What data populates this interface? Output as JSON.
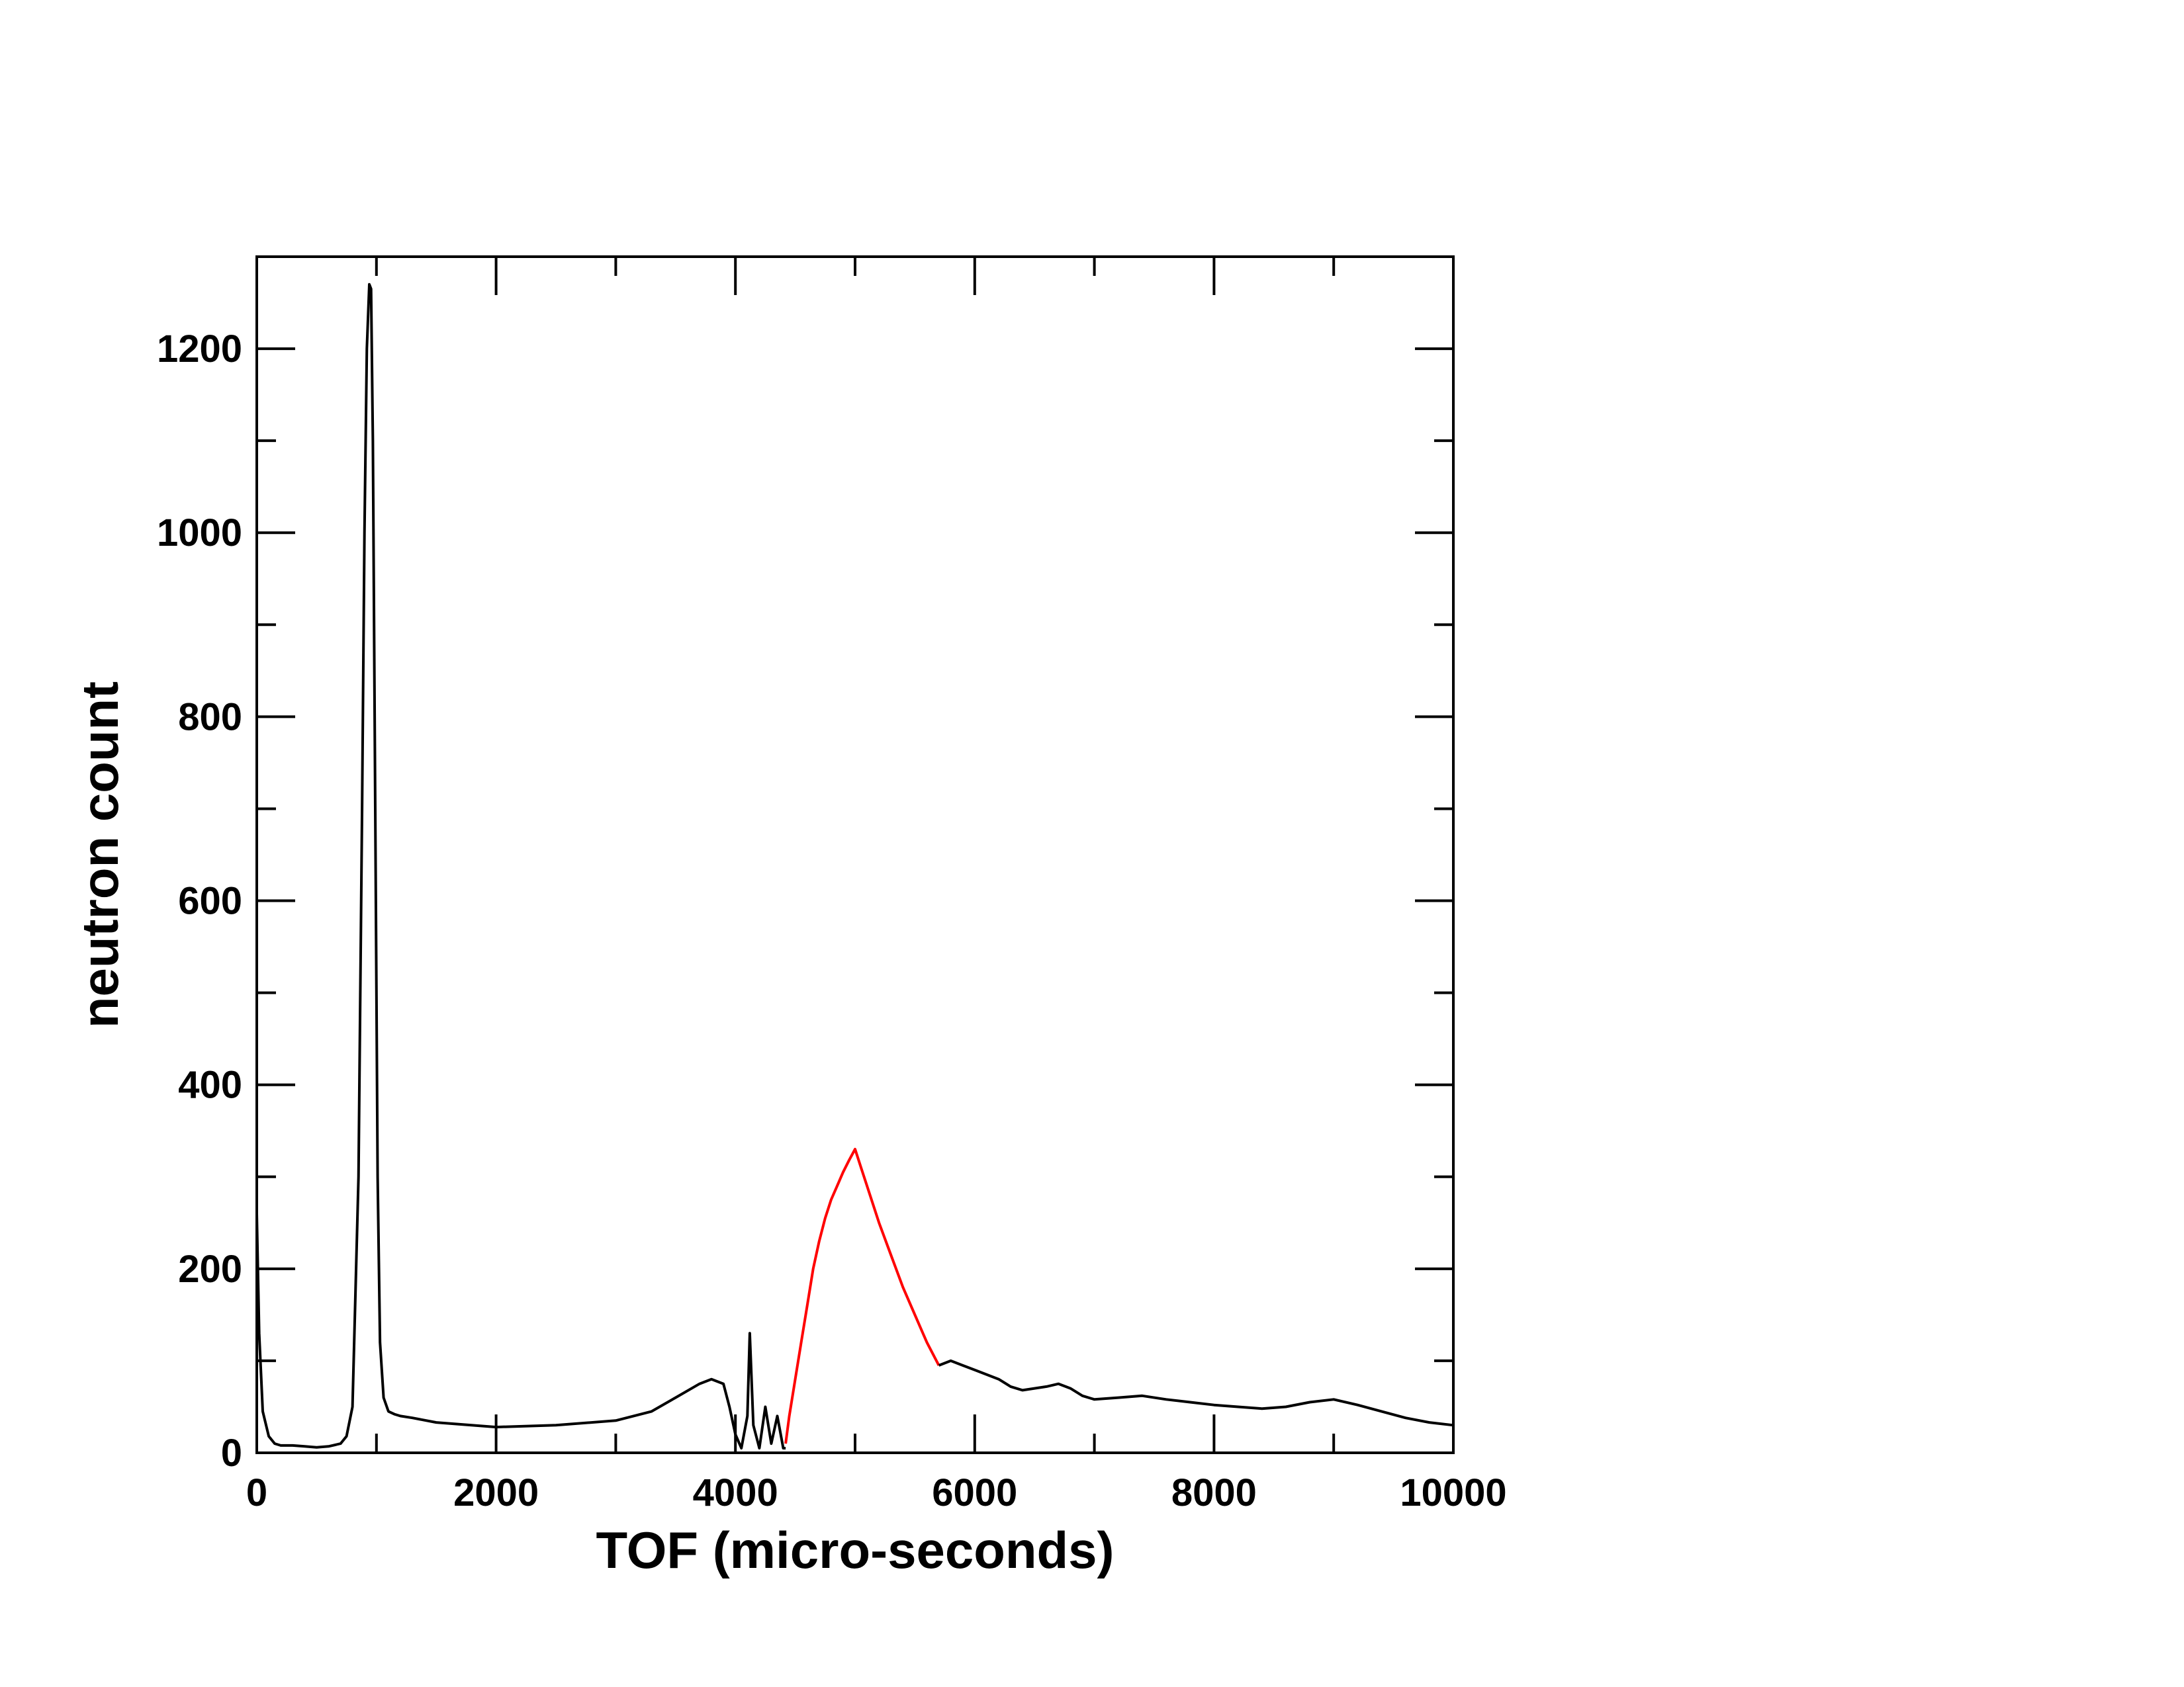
{
  "chart_data": {
    "type": "line",
    "title": "",
    "xlabel": "TOF (micro-seconds)",
    "ylabel": "neutron count",
    "xlim": [
      0,
      10000
    ],
    "ylim": [
      0,
      1300
    ],
    "x_ticks": [
      0,
      2000,
      4000,
      6000,
      8000,
      10000
    ],
    "x_tick_labels": [
      "0",
      "2000",
      "4000",
      "6000",
      "8000",
      "10000"
    ],
    "y_ticks": [
      0,
      200,
      400,
      600,
      800,
      1000,
      1200
    ],
    "y_tick_labels": [
      "0",
      "200",
      "400",
      "600",
      "800",
      "1000",
      "1200"
    ],
    "x_minor_step": 1000,
    "y_minor_step": 100,
    "grid": false,
    "legend": "none",
    "series": [
      {
        "color": "#000000",
        "x": [
          0,
          20,
          50,
          100,
          150,
          200,
          300,
          400,
          500,
          600,
          700,
          750,
          800,
          850,
          880,
          900,
          920,
          940,
          955,
          970,
          990,
          1010,
          1030,
          1060,
          1100,
          1150,
          1200,
          1300,
          1500,
          2000,
          2500,
          3000,
          3300,
          3500,
          3700,
          3800,
          3900,
          3950,
          4000,
          4050,
          4100,
          4120,
          4150,
          4200,
          4250,
          4300,
          4350,
          4400,
          4420
        ],
        "y": [
          260,
          130,
          45,
          18,
          10,
          8,
          8,
          7,
          6,
          7,
          10,
          18,
          50,
          300,
          700,
          1000,
          1200,
          1270,
          1265,
          1100,
          700,
          300,
          120,
          60,
          45,
          42,
          40,
          38,
          33,
          28,
          30,
          35,
          45,
          60,
          75,
          80,
          75,
          50,
          20,
          5,
          40,
          130,
          30,
          5,
          50,
          10,
          40,
          5,
          5
        ]
      },
      {
        "color": "#ff0000",
        "x": [
          4420,
          4450,
          4500,
          4550,
          4600,
          4650,
          4700,
          4750,
          4800,
          4850,
          4900,
          4950,
          5000,
          5050,
          5100,
          5200,
          5300,
          5400,
          5500,
          5600,
          5700
        ],
        "y": [
          10,
          40,
          80,
          120,
          160,
          200,
          230,
          255,
          275,
          290,
          305,
          318,
          330,
          310,
          290,
          250,
          215,
          180,
          150,
          120,
          95
        ]
      },
      {
        "color": "#000000",
        "x": [
          5700,
          5800,
          5900,
          6000,
          6100,
          6200,
          6300,
          6400,
          6500,
          6600,
          6700,
          6800,
          6900,
          7000,
          7200,
          7400,
          7600,
          7800,
          8000,
          8200,
          8400,
          8600,
          8800,
          9000,
          9200,
          9400,
          9600,
          9800,
          10000
        ],
        "y": [
          95,
          100,
          95,
          90,
          85,
          80,
          72,
          68,
          70,
          72,
          75,
          70,
          62,
          58,
          60,
          62,
          58,
          55,
          52,
          50,
          48,
          50,
          55,
          58,
          52,
          45,
          38,
          33,
          30
        ]
      }
    ]
  }
}
